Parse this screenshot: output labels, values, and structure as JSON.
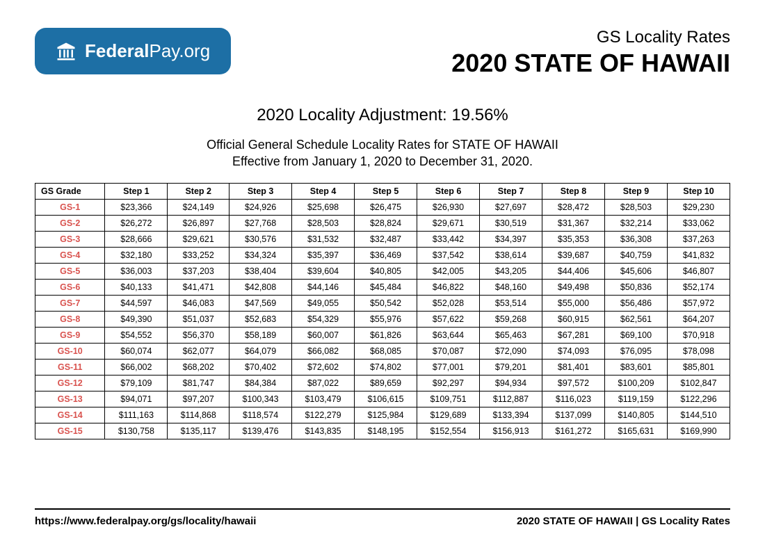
{
  "logo": {
    "name_bold": "Federal",
    "name_light": "Pay.org"
  },
  "header": {
    "subtitle": "GS Locality Rates",
    "title": "2020 STATE OF HAWAII"
  },
  "adjustment": "2020 Locality Adjustment: 19.56%",
  "effective_line1": "Official General Schedule Locality Rates for STATE OF HAWAII",
  "effective_line2": "Effective from January 1, 2020 to December 31, 2020.",
  "columns": [
    "GS Grade",
    "Step 1",
    "Step 2",
    "Step 3",
    "Step 4",
    "Step 5",
    "Step 6",
    "Step 7",
    "Step 8",
    "Step 9",
    "Step 10"
  ],
  "rows": [
    {
      "grade": "GS-1",
      "steps": [
        "$23,366",
        "$24,149",
        "$24,926",
        "$25,698",
        "$26,475",
        "$26,930",
        "$27,697",
        "$28,472",
        "$28,503",
        "$29,230"
      ]
    },
    {
      "grade": "GS-2",
      "steps": [
        "$26,272",
        "$26,897",
        "$27,768",
        "$28,503",
        "$28,824",
        "$29,671",
        "$30,519",
        "$31,367",
        "$32,214",
        "$33,062"
      ]
    },
    {
      "grade": "GS-3",
      "steps": [
        "$28,666",
        "$29,621",
        "$30,576",
        "$31,532",
        "$32,487",
        "$33,442",
        "$34,397",
        "$35,353",
        "$36,308",
        "$37,263"
      ]
    },
    {
      "grade": "GS-4",
      "steps": [
        "$32,180",
        "$33,252",
        "$34,324",
        "$35,397",
        "$36,469",
        "$37,542",
        "$38,614",
        "$39,687",
        "$40,759",
        "$41,832"
      ]
    },
    {
      "grade": "GS-5",
      "steps": [
        "$36,003",
        "$37,203",
        "$38,404",
        "$39,604",
        "$40,805",
        "$42,005",
        "$43,205",
        "$44,406",
        "$45,606",
        "$46,807"
      ]
    },
    {
      "grade": "GS-6",
      "steps": [
        "$40,133",
        "$41,471",
        "$42,808",
        "$44,146",
        "$45,484",
        "$46,822",
        "$48,160",
        "$49,498",
        "$50,836",
        "$52,174"
      ]
    },
    {
      "grade": "GS-7",
      "steps": [
        "$44,597",
        "$46,083",
        "$47,569",
        "$49,055",
        "$50,542",
        "$52,028",
        "$53,514",
        "$55,000",
        "$56,486",
        "$57,972"
      ]
    },
    {
      "grade": "GS-8",
      "steps": [
        "$49,390",
        "$51,037",
        "$52,683",
        "$54,329",
        "$55,976",
        "$57,622",
        "$59,268",
        "$60,915",
        "$62,561",
        "$64,207"
      ]
    },
    {
      "grade": "GS-9",
      "steps": [
        "$54,552",
        "$56,370",
        "$58,189",
        "$60,007",
        "$61,826",
        "$63,644",
        "$65,463",
        "$67,281",
        "$69,100",
        "$70,918"
      ]
    },
    {
      "grade": "GS-10",
      "steps": [
        "$60,074",
        "$62,077",
        "$64,079",
        "$66,082",
        "$68,085",
        "$70,087",
        "$72,090",
        "$74,093",
        "$76,095",
        "$78,098"
      ]
    },
    {
      "grade": "GS-11",
      "steps": [
        "$66,002",
        "$68,202",
        "$70,402",
        "$72,602",
        "$74,802",
        "$77,001",
        "$79,201",
        "$81,401",
        "$83,601",
        "$85,801"
      ]
    },
    {
      "grade": "GS-12",
      "steps": [
        "$79,109",
        "$81,747",
        "$84,384",
        "$87,022",
        "$89,659",
        "$92,297",
        "$94,934",
        "$97,572",
        "$100,209",
        "$102,847"
      ]
    },
    {
      "grade": "GS-13",
      "steps": [
        "$94,071",
        "$97,207",
        "$100,343",
        "$103,479",
        "$106,615",
        "$109,751",
        "$112,887",
        "$116,023",
        "$119,159",
        "$122,296"
      ]
    },
    {
      "grade": "GS-14",
      "steps": [
        "$111,163",
        "$114,868",
        "$118,574",
        "$122,279",
        "$125,984",
        "$129,689",
        "$133,394",
        "$137,099",
        "$140,805",
        "$144,510"
      ]
    },
    {
      "grade": "GS-15",
      "steps": [
        "$130,758",
        "$135,117",
        "$139,476",
        "$143,835",
        "$148,195",
        "$152,554",
        "$156,913",
        "$161,272",
        "$165,631",
        "$169,990"
      ]
    }
  ],
  "footer": {
    "url": "https://www.federalpay.org/gs/locality/hawaii",
    "right": "2020 STATE OF HAWAII | GS Locality Rates"
  },
  "styling": {
    "badge_color": "#1d6fa5",
    "grade_color": "#d9534f",
    "border_color": "#000000",
    "font_family": "Arial",
    "table_font_size": 12.5,
    "subtitle_fontsize": 24,
    "title_fontsize": 36
  }
}
